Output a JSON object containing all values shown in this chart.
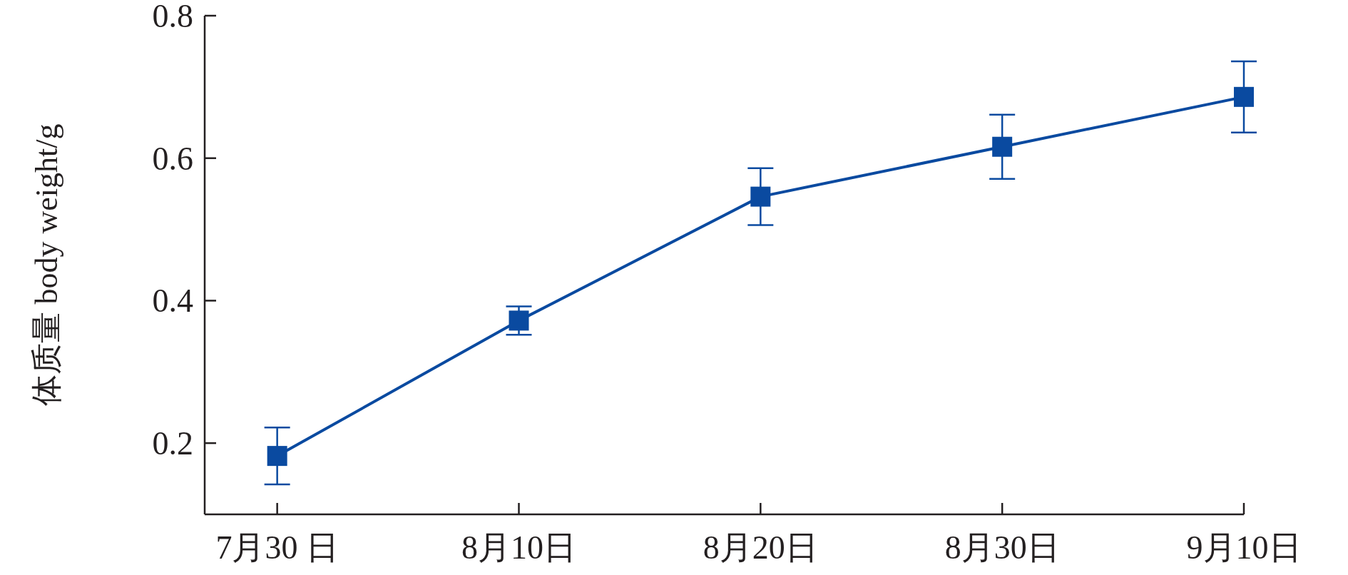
{
  "chart_data": {
    "type": "line",
    "ylabel": "体质量 body weight/g",
    "categories": [
      "7月30 日",
      "8月10日",
      "8月20日",
      "8月30日",
      "9月10日"
    ],
    "values": [
      0.182,
      0.372,
      0.546,
      0.616,
      0.686
    ],
    "errors": [
      0.04,
      0.02,
      0.04,
      0.045,
      0.05
    ],
    "color": "#0a4aa0",
    "marker": "square",
    "line_style": "solid",
    "grid": false,
    "ylim": [
      0.1,
      0.8
    ],
    "yticks": [
      0.2,
      0.4,
      0.6,
      0.8
    ]
  }
}
